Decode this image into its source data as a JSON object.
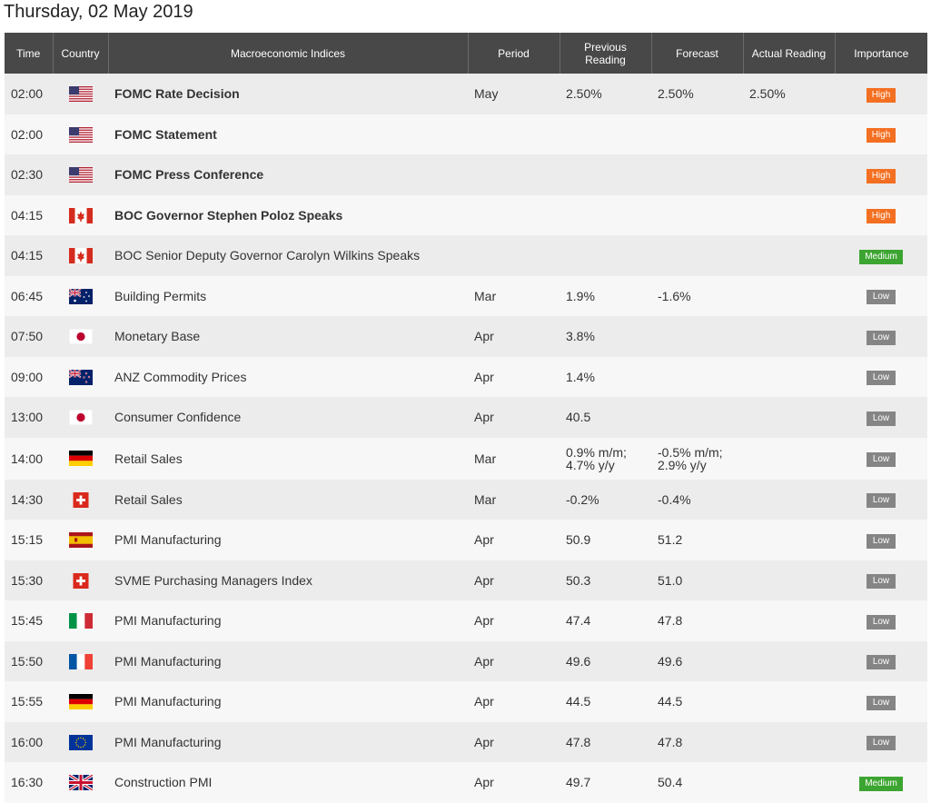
{
  "page_title": "Thursday, 02 May 2019",
  "columns": {
    "time": "Time",
    "country": "Country",
    "indices": "Macroeconomic Indices",
    "period": "Period",
    "previous": "Previous Reading",
    "forecast": "Forecast",
    "actual": "Actual Reading",
    "importance": "Importance"
  },
  "importance_colors": {
    "High": "#f36f21",
    "Medium": "#3ca531",
    "Low": "#858585"
  },
  "rows": [
    {
      "time": "02:00",
      "flag": "us-flag-icon",
      "event": "FOMC Rate Decision",
      "bold": true,
      "period": "May",
      "previous": "2.50%",
      "forecast": "2.50%",
      "actual": "2.50%",
      "importance": "High"
    },
    {
      "time": "02:00",
      "flag": "us-flag-icon",
      "event": "FOMC Statement",
      "bold": true,
      "period": "",
      "previous": "",
      "forecast": "",
      "actual": "",
      "importance": "High"
    },
    {
      "time": "02:30",
      "flag": "us-flag-icon",
      "event": "FOMC Press Conference",
      "bold": true,
      "period": "",
      "previous": "",
      "forecast": "",
      "actual": "",
      "importance": "High"
    },
    {
      "time": "04:15",
      "flag": "canada-flag-icon",
      "event": "BOC Governor Stephen Poloz Speaks",
      "bold": true,
      "period": "",
      "previous": "",
      "forecast": "",
      "actual": "",
      "importance": "High"
    },
    {
      "time": "04:15",
      "flag": "canada-flag-icon",
      "event": "BOC Senior Deputy Governor Carolyn Wilkins Speaks",
      "bold": false,
      "period": "",
      "previous": "",
      "forecast": "",
      "actual": "",
      "importance": "Medium"
    },
    {
      "time": "06:45",
      "flag": "australia-flag-icon",
      "event": "Building Permits",
      "bold": false,
      "period": "Mar",
      "previous": "1.9%",
      "forecast": "-1.6%",
      "actual": "",
      "importance": "Low"
    },
    {
      "time": "07:50",
      "flag": "japan-flag-icon",
      "event": "Monetary Base",
      "bold": false,
      "period": "Apr",
      "previous": "3.8%",
      "forecast": "",
      "actual": "",
      "importance": "Low"
    },
    {
      "time": "09:00",
      "flag": "new-zealand-flag-icon",
      "event": "ANZ Commodity Prices",
      "bold": false,
      "period": "Apr",
      "previous": "1.4%",
      "forecast": "",
      "actual": "",
      "importance": "Low"
    },
    {
      "time": "13:00",
      "flag": "japan-flag-icon",
      "event": "Consumer Confidence",
      "bold": false,
      "period": "Apr",
      "previous": "40.5",
      "forecast": "",
      "actual": "",
      "importance": "Low"
    },
    {
      "time": "14:00",
      "flag": "germany-flag-icon",
      "event": "Retail Sales",
      "bold": false,
      "period": "Mar",
      "previous": "0.9% m/m; 4.7% y/y",
      "forecast": "-0.5% m/m; 2.9% y/y",
      "actual": "",
      "importance": "Low"
    },
    {
      "time": "14:30",
      "flag": "switzerland-flag-icon",
      "event": "Retail Sales",
      "bold": false,
      "period": "Mar",
      "previous": "-0.2%",
      "forecast": "-0.4%",
      "actual": "",
      "importance": "Low"
    },
    {
      "time": "15:15",
      "flag": "spain-flag-icon",
      "event": "PMI Manufacturing",
      "bold": false,
      "period": "Apr",
      "previous": "50.9",
      "forecast": "51.2",
      "actual": "",
      "importance": "Low"
    },
    {
      "time": "15:30",
      "flag": "switzerland-flag-icon",
      "event": "SVME Purchasing Managers Index",
      "bold": false,
      "period": "Apr",
      "previous": "50.3",
      "forecast": "51.0",
      "actual": "",
      "importance": "Low"
    },
    {
      "time": "15:45",
      "flag": "italy-flag-icon",
      "event": "PMI Manufacturing",
      "bold": false,
      "period": "Apr",
      "previous": "47.4",
      "forecast": "47.8",
      "actual": "",
      "importance": "Low"
    },
    {
      "time": "15:50",
      "flag": "france-flag-icon",
      "event": "PMI Manufacturing",
      "bold": false,
      "period": "Apr",
      "previous": "49.6",
      "forecast": "49.6",
      "actual": "",
      "importance": "Low"
    },
    {
      "time": "15:55",
      "flag": "germany-flag-icon",
      "event": "PMI Manufacturing",
      "bold": false,
      "period": "Apr",
      "previous": "44.5",
      "forecast": "44.5",
      "actual": "",
      "importance": "Low"
    },
    {
      "time": "16:00",
      "flag": "eu-flag-icon",
      "event": "PMI Manufacturing",
      "bold": false,
      "period": "Apr",
      "previous": "47.8",
      "forecast": "47.8",
      "actual": "",
      "importance": "Low"
    },
    {
      "time": "16:30",
      "flag": "uk-flag-icon",
      "event": "Construction PMI",
      "bold": false,
      "period": "Apr",
      "previous": "49.7",
      "forecast": "50.4",
      "actual": "",
      "importance": "Medium"
    }
  ]
}
